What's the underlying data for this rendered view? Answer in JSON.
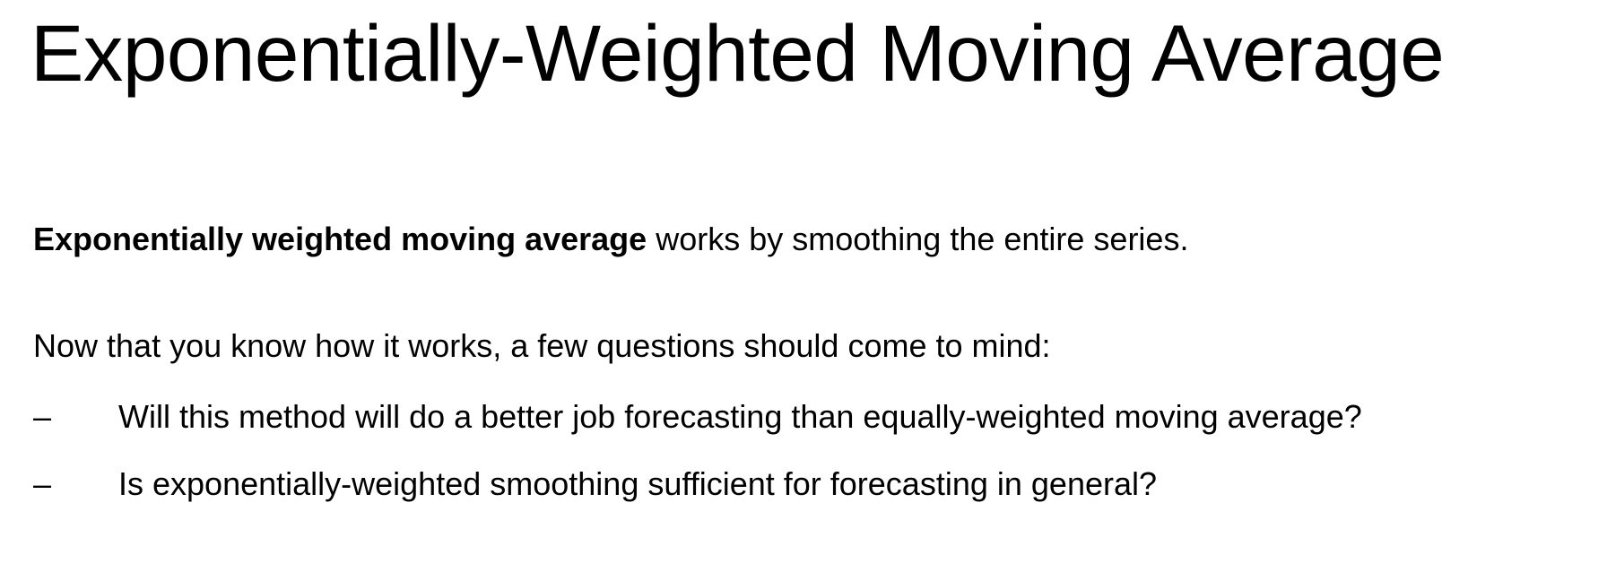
{
  "slide": {
    "title": "Exponentially-Weighted Moving Average",
    "intro": {
      "bold": "Exponentially weighted moving average",
      "rest": " works by smoothing the entire series."
    },
    "lead": "Now that you know how it works, a few questions should come to mind:",
    "bullets": [
      {
        "marker": "–",
        "text": "Will this method will do a better job forecasting than equally-weighted moving average?"
      },
      {
        "marker": "–",
        "text": "Is exponentially-weighted smoothing sufficient for forecasting in general?"
      }
    ]
  }
}
